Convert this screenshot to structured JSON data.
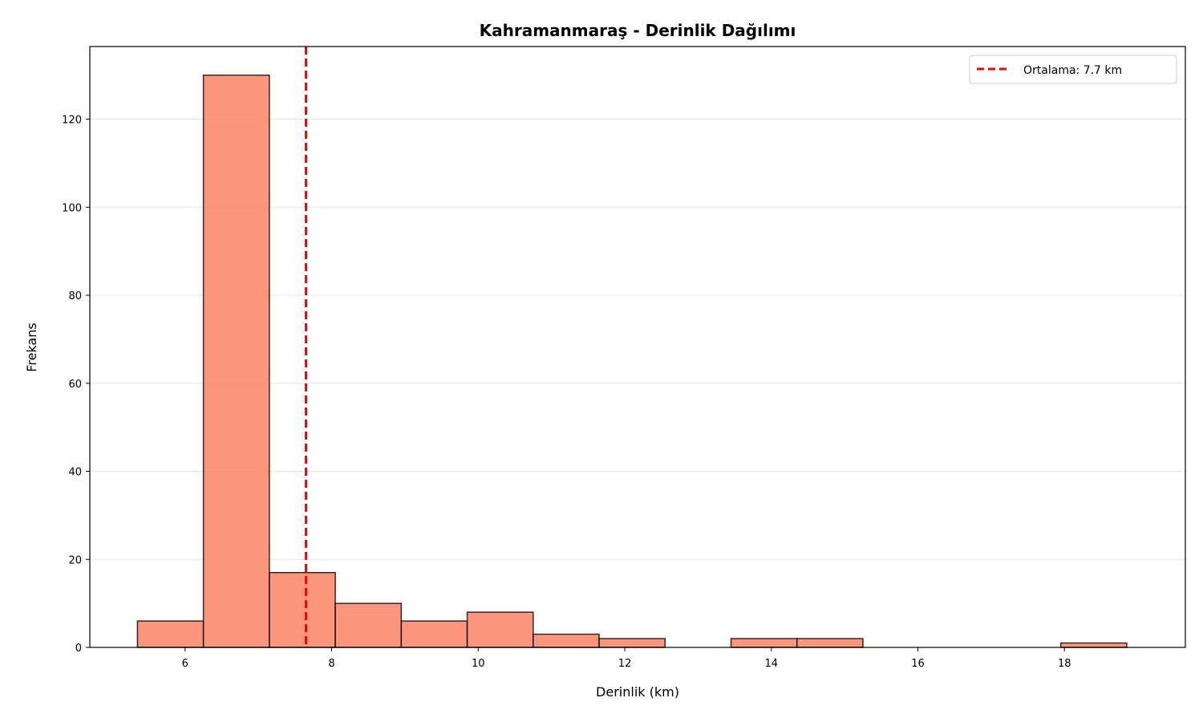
{
  "chart_data": {
    "type": "bar",
    "title": "Kahramanmaraş - Derinlik Dağılımı",
    "xlabel": "Derinlik (km)",
    "ylabel": "Frekans",
    "xlim": [
      4.7,
      19.65
    ],
    "ylim": [
      0,
      136.5
    ],
    "xticks": [
      6,
      8,
      10,
      12,
      14,
      16,
      18
    ],
    "yticks": [
      0,
      20,
      40,
      60,
      80,
      100,
      120
    ],
    "grid": "y",
    "bins": [
      {
        "x0": 5.35,
        "x1": 6.25,
        "count": 6
      },
      {
        "x0": 6.25,
        "x1": 7.15,
        "count": 130
      },
      {
        "x0": 7.15,
        "x1": 8.05,
        "count": 17
      },
      {
        "x0": 8.05,
        "x1": 8.95,
        "count": 10
      },
      {
        "x0": 8.95,
        "x1": 9.85,
        "count": 6
      },
      {
        "x0": 9.85,
        "x1": 10.75,
        "count": 8
      },
      {
        "x0": 10.75,
        "x1": 11.65,
        "count": 3
      },
      {
        "x0": 11.65,
        "x1": 12.55,
        "count": 2
      },
      {
        "x0": 12.55,
        "x1": 13.45,
        "count": 0
      },
      {
        "x0": 13.45,
        "x1": 14.35,
        "count": 2
      },
      {
        "x0": 14.35,
        "x1": 15.25,
        "count": 2
      },
      {
        "x0": 15.25,
        "x1": 16.15,
        "count": 0
      },
      {
        "x0": 16.15,
        "x1": 17.05,
        "count": 0
      },
      {
        "x0": 17.05,
        "x1": 17.95,
        "count": 0
      },
      {
        "x0": 17.95,
        "x1": 18.85,
        "count": 1
      }
    ],
    "mean_line": {
      "value": 7.65,
      "label": "Ortalama: 7.7 km",
      "color": "#ff0000",
      "style": "dashed"
    },
    "bar_color": "#fa8466",
    "bar_edge_color": "#000000",
    "legend_position": "top-right"
  }
}
